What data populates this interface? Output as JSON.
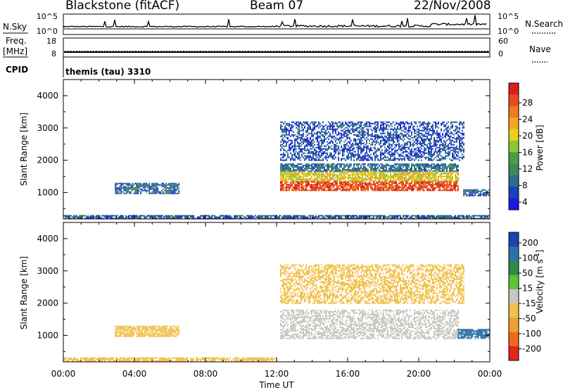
{
  "header": {
    "station": "Blackstone (fitACF)",
    "beam": "Beam 07",
    "date": "22/Nov/2008"
  },
  "panels": {
    "nsky_label": "N.Sky",
    "nsearch_label": "N.Search",
    "noise_ticks_left": [
      "10^5",
      "10^0"
    ],
    "noise_ticks_right": [
      "10^5",
      "10^0"
    ],
    "freq_label_top": "Freq.",
    "freq_label_unit": "[MHz]",
    "freq_ticks": [
      "18",
      "8"
    ],
    "nave_label": "Nave",
    "nave_ticks": [
      "60",
      "0"
    ],
    "cpid_label": "CPID",
    "cpid_value": "themis (tau) 3310"
  },
  "chart_data": [
    {
      "type": "heatmap",
      "name": "power",
      "ylabel": "Slant Range [km]",
      "yticks": [
        1000,
        2000,
        3000,
        4000
      ],
      "ylim": [
        180,
        4500
      ],
      "xlim_hours": [
        0,
        24
      ],
      "colorbar": {
        "label": "Power [dB]",
        "ticks": [
          "28",
          "24",
          "20",
          "16",
          "12",
          "8",
          "4"
        ],
        "range": [
          0,
          30
        ],
        "colors": [
          "#1a1ae6",
          "#1e3fbf",
          "#2e6b8f",
          "#3a8a5c",
          "#4aa040",
          "#8cc63c",
          "#e6d21e",
          "#f5a623",
          "#f07a1e",
          "#e84a1e",
          "#dd1d1d"
        ]
      },
      "regions": [
        {
          "t": [
            0.0,
            24.0
          ],
          "r": [
            200,
            300
          ],
          "value": 6,
          "note": "ground scatter band"
        },
        {
          "t": [
            2.9,
            6.5
          ],
          "r": [
            980,
            1300
          ],
          "value": 6
        },
        {
          "t": [
            12.2,
            22.2
          ],
          "r": [
            1650,
            1900
          ],
          "value": 7
        },
        {
          "t": [
            12.2,
            22.2
          ],
          "r": [
            1350,
            1650
          ],
          "value": 18
        },
        {
          "t": [
            12.2,
            22.2
          ],
          "r": [
            1050,
            1350
          ],
          "value": 26
        },
        {
          "t": [
            12.2,
            22.5
          ],
          "r": [
            2000,
            3200
          ],
          "value": 5
        },
        {
          "t": [
            22.5,
            24.0
          ],
          "r": [
            900,
            1100
          ],
          "value": 6
        }
      ]
    },
    {
      "type": "heatmap",
      "name": "velocity",
      "xlabel": "Time UT",
      "ylabel": "Slant Range [km]",
      "xticks": [
        "00:00",
        "04:00",
        "08:00",
        "12:00",
        "16:00",
        "20:00",
        "00:00"
      ],
      "yticks": [
        1000,
        2000,
        3000,
        4000
      ],
      "ylim": [
        180,
        4500
      ],
      "xlim_hours": [
        0,
        24
      ],
      "colorbar": {
        "label": "Velocity [m s^-1]",
        "ticks": [
          "200",
          "100",
          "50",
          "15",
          "-15",
          "-50",
          "-100",
          "-200"
        ],
        "colors": [
          "#1f3fb5",
          "#2f6fa8",
          "#2f8a4a",
          "#5cc23a",
          "#c8c8c0",
          "#f2c14e",
          "#f0a030",
          "#ef6a1e",
          "#e8231e"
        ]
      },
      "regions": [
        {
          "t": [
            0.0,
            12.0
          ],
          "r": [
            200,
            320
          ],
          "value": -40
        },
        {
          "t": [
            2.9,
            6.5
          ],
          "r": [
            980,
            1300
          ],
          "value": -40
        },
        {
          "t": [
            12.2,
            22.2
          ],
          "r": [
            900,
            1800
          ],
          "value": 0
        },
        {
          "t": [
            12.2,
            22.5
          ],
          "r": [
            2000,
            3200
          ],
          "value": -20
        },
        {
          "t": [
            22.2,
            24.0
          ],
          "r": [
            900,
            1200
          ],
          "value": 60
        }
      ]
    }
  ]
}
